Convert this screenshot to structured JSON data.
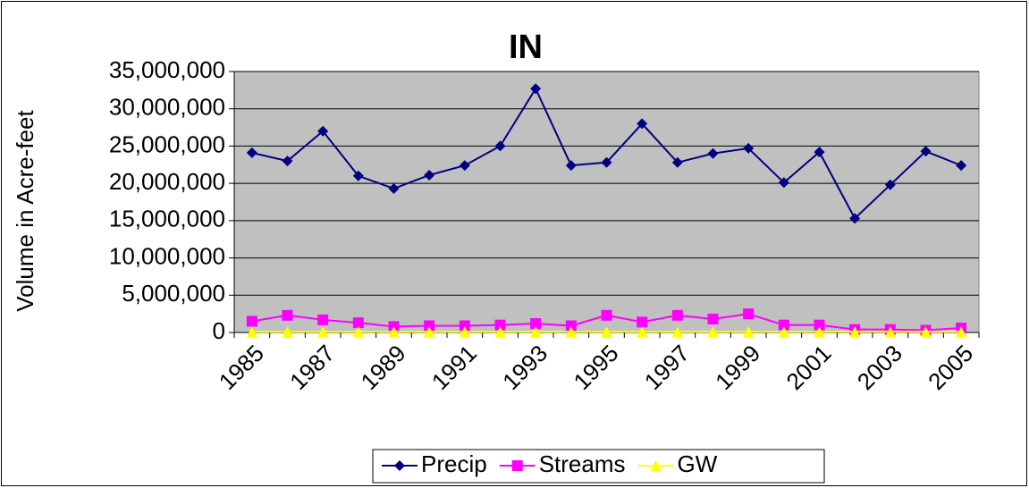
{
  "chart_data": {
    "type": "line",
    "title": "IN",
    "y_label": "Volume in Acre-feet",
    "categories": [
      "1985",
      null,
      "1987",
      null,
      "1989",
      null,
      "1991",
      null,
      "1993",
      null,
      "1995",
      null,
      "1997",
      null,
      "1999",
      null,
      "2001",
      null,
      "2003",
      null,
      "2005"
    ],
    "series": [
      {
        "name": "Precip",
        "color": "#000080",
        "marker": "diamond",
        "values": [
          24100000,
          23000000,
          27000000,
          21000000,
          19300000,
          21100000,
          22400000,
          25000000,
          32700000,
          22400000,
          22800000,
          28000000,
          22800000,
          24000000,
          24700000,
          20100000,
          24200000,
          15300000,
          19800000,
          24300000,
          22400000
        ]
      },
      {
        "name": "Streams",
        "color": "#ff00ff",
        "marker": "square",
        "values": [
          1500000,
          2300000,
          1700000,
          1300000,
          800000,
          900000,
          900000,
          1000000,
          1200000,
          900000,
          2300000,
          1400000,
          2300000,
          1800000,
          2500000,
          1000000,
          1000000,
          400000,
          400000,
          300000,
          600000
        ]
      },
      {
        "name": "GW",
        "color": "#ffff00",
        "marker": "triangle",
        "values": [
          100000,
          100000,
          100000,
          100000,
          100000,
          100000,
          100000,
          100000,
          100000,
          100000,
          100000,
          100000,
          100000,
          100000,
          100000,
          100000,
          100000,
          100000,
          100000,
          100000,
          100000
        ]
      }
    ],
    "ylim": [
      0,
      35000000
    ],
    "yticks": [
      0,
      {
        "value": 5000000,
        "label": "5,000,000"
      },
      {
        "value": 10000000,
        "label": "10,000,000"
      },
      {
        "value": 15000000,
        "label": "15,000,000"
      },
      {
        "value": 20000000,
        "label": "20,000,000"
      },
      {
        "value": 25000000,
        "label": "25,000,000"
      },
      {
        "value": 30000000,
        "label": "30,000,000"
      },
      {
        "value": 35000000,
        "label": "35,000,000"
      }
    ],
    "grid": true,
    "plot_background": "#c0c0c0",
    "legend": "bottom"
  }
}
